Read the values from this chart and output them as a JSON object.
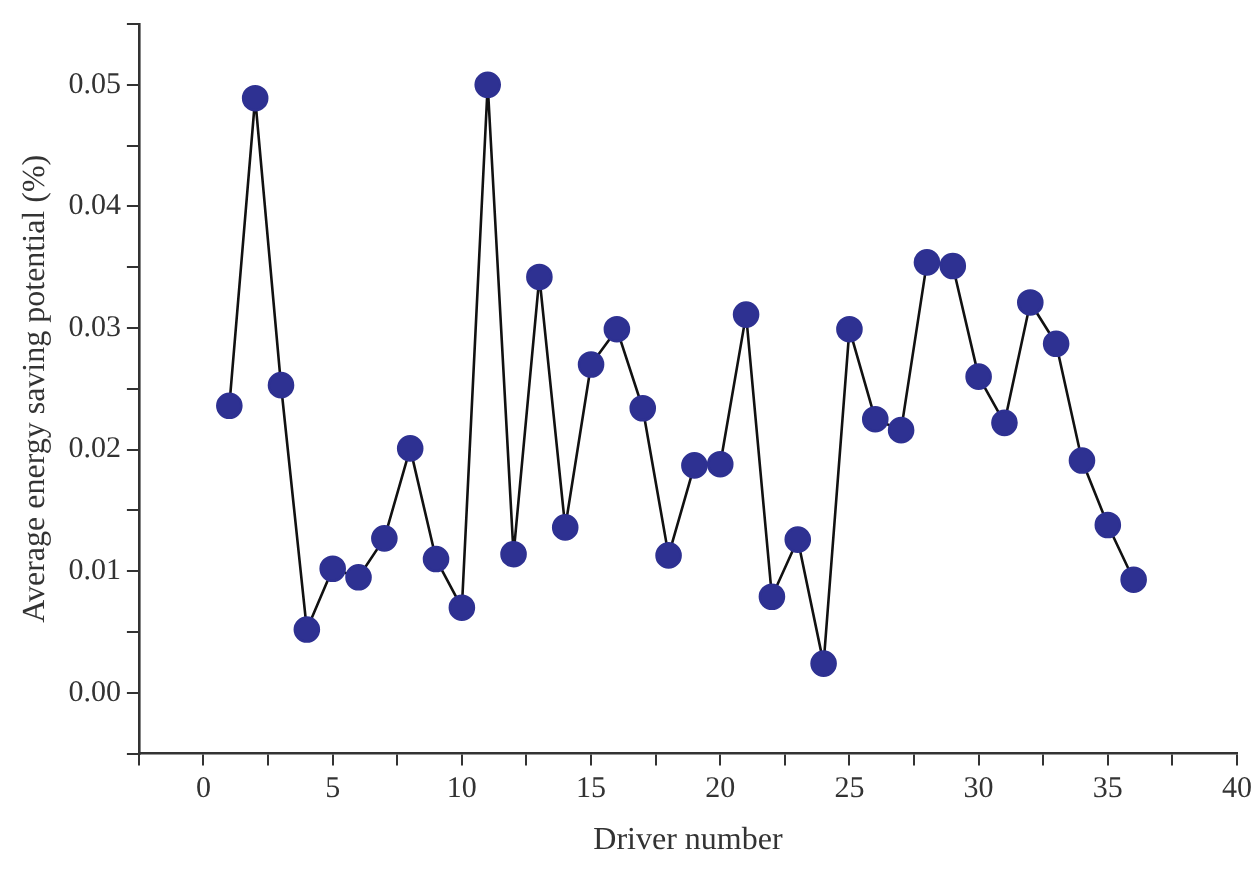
{
  "chart_data": {
    "type": "line",
    "xlabel": "Driver number",
    "ylabel": "Average energy saving potential (%)",
    "x": [
      1,
      2,
      3,
      4,
      5,
      6,
      7,
      8,
      9,
      10,
      11,
      12,
      13,
      14,
      15,
      16,
      17,
      18,
      19,
      20,
      21,
      22,
      23,
      24,
      25,
      26,
      27,
      28,
      29,
      30,
      31,
      32,
      33,
      34,
      35,
      36
    ],
    "series": [
      {
        "color": "#2e3192",
        "values": [
          0.0236,
          0.0489,
          0.0253,
          0.0052,
          0.0102,
          0.0095,
          0.0127,
          0.0201,
          0.011,
          0.007,
          0.05,
          0.0114,
          0.0342,
          0.0136,
          0.027,
          0.0299,
          0.0234,
          0.0113,
          0.0187,
          0.0188,
          0.0311,
          0.0079,
          0.0126,
          0.0024,
          0.0299,
          0.0225,
          0.0216,
          0.0354,
          0.0351,
          0.026,
          0.0222,
          0.0321,
          0.0287,
          0.0191,
          0.0138,
          0.0093
        ]
      }
    ],
    "xlim": [
      -2.5,
      40
    ],
    "xticks": [
      {
        "value": -2.5,
        "label": null
      },
      0,
      {
        "value": 2.5,
        "label": null
      },
      5,
      {
        "value": 7.5,
        "label": null
      },
      10,
      {
        "value": 12.5,
        "label": null
      },
      15,
      {
        "value": 17.5,
        "label": null
      },
      20,
      {
        "value": 22.5,
        "label": null
      },
      25,
      {
        "value": 27.5,
        "label": null
      },
      30,
      {
        "value": 32.5,
        "label": null
      },
      35,
      {
        "value": 37.5,
        "label": null
      },
      40
    ],
    "ylim": [
      -0.005,
      0.055
    ],
    "yticks": [
      {
        "value": -0.005,
        "label": null
      },
      {
        "value": 0,
        "label": "0.00"
      },
      {
        "value": 0.005,
        "label": null
      },
      0.01,
      {
        "value": 0.015,
        "label": null
      },
      0.02,
      {
        "value": 0.025,
        "label": null
      },
      0.03,
      {
        "value": 0.035,
        "label": null
      },
      0.04,
      {
        "value": 0.045,
        "label": null
      },
      0.05,
      {
        "value": 0.055,
        "label": null
      }
    ],
    "grid": false,
    "legend": false,
    "marker": "circle",
    "line_style": "solid"
  }
}
